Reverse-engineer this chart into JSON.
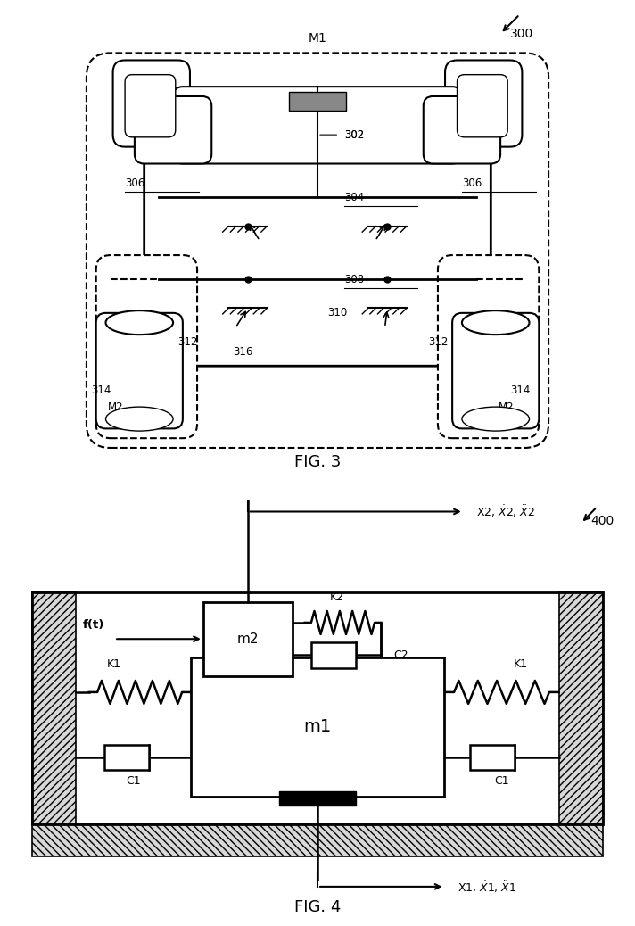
{
  "fig3_caption": "FIG. 3",
  "fig4_caption": "FIG. 4",
  "label_300": "300",
  "label_400": "400",
  "label_M1": "M1",
  "label_M2": "M2",
  "label_302": "302",
  "label_304": "304",
  "label_306": "306",
  "label_308": "308",
  "label_310": "310",
  "label_312": "312",
  "label_314": "314",
  "label_316": "316",
  "label_K1": "K1",
  "label_K2": "K2",
  "label_C1": "C1",
  "label_C2": "C2",
  "label_m1": "m1",
  "label_m2": "m2",
  "label_ft": "f(t)",
  "label_x1": "X1, Ẋ1, Ẋ̇·1",
  "label_x2": "X2, Ẋ2, Ẋ̇·2",
  "background": "#ffffff",
  "line_color": "#000000"
}
